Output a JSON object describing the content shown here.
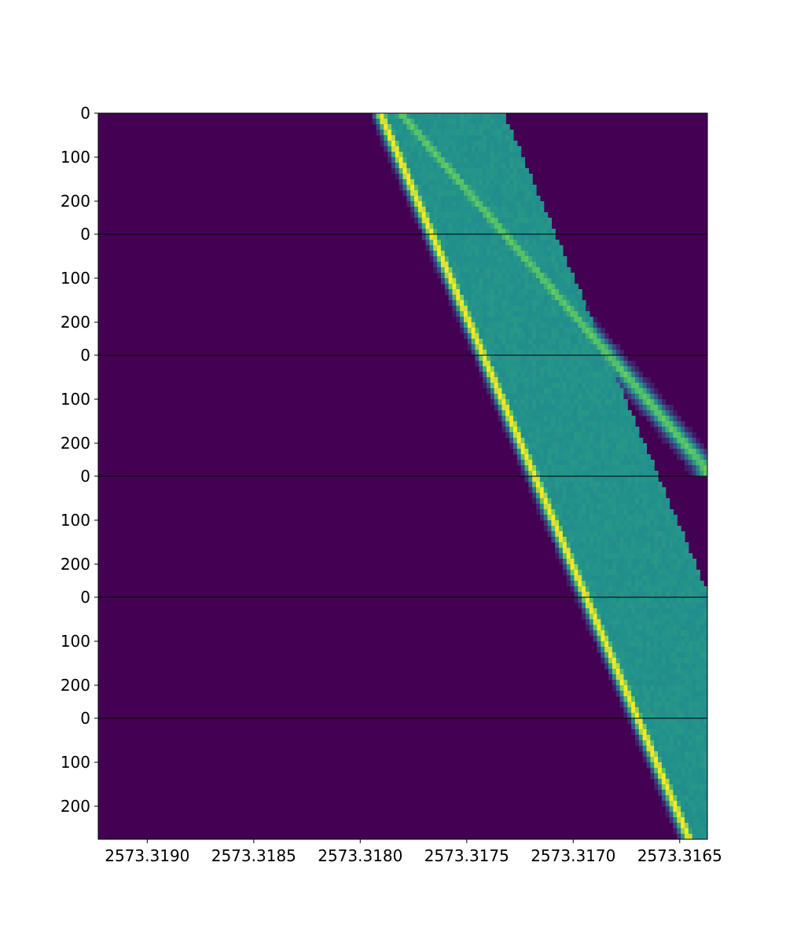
{
  "colors": {
    "background": "#440154",
    "low": "#3b0f6f",
    "mid": "#21918c",
    "high": "#2db27d",
    "peak": "#fde725",
    "separator": "#000000"
  },
  "chart_data": {
    "type": "heatmap",
    "colormap": "viridis",
    "panel_count": 6,
    "x_axis": {
      "inverted": true,
      "range": [
        2573.31923,
        2573.31637
      ],
      "tick_values": [
        2573.319,
        2573.3185,
        2573.318,
        2573.3175,
        2573.317,
        2573.3165
      ],
      "tick_labels": [
        "2573.3190",
        "2573.3185",
        "2573.3180",
        "2573.3175",
        "2573.3170",
        "2573.3165"
      ]
    },
    "y_axis": {
      "range_per_panel": [
        0,
        275
      ],
      "tick_values": [
        0,
        100,
        200
      ],
      "tick_labels": [
        "0",
        "100",
        "200"
      ]
    },
    "bright_track": {
      "description_values": "center frequency vs time row, descending across panels",
      "start": 2573.3179,
      "end": 2573.31645
    },
    "secondary_track": {
      "start": 2573.3178,
      "end": 2573.31637
    },
    "panels": [
      {
        "index": 0
      },
      {
        "index": 1
      },
      {
        "index": 2
      },
      {
        "index": 3
      },
      {
        "index": 4
      },
      {
        "index": 5
      }
    ]
  }
}
